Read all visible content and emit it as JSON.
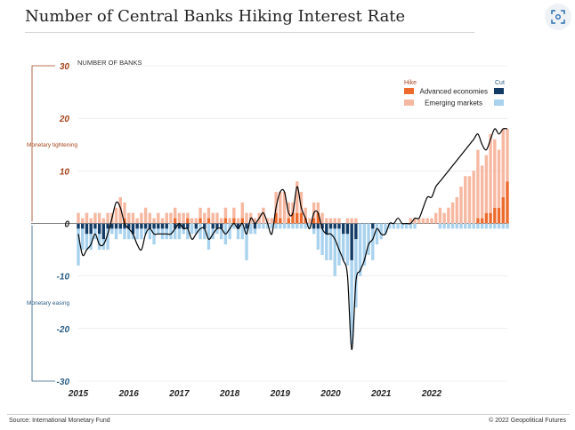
{
  "header": {
    "title": "Number of Central Banks Hiking Interest Rate",
    "lens_icon": "lens-scan-icon"
  },
  "footer": {
    "source": "Source: International Monetary Fund",
    "copyright": "© 2022 Geopolitical Futures"
  },
  "colors": {
    "adv_hike": "#ee6a2c",
    "em_hike": "#f7b8a1",
    "adv_cut": "#123b66",
    "em_cut": "#a9d2ee",
    "tightening_axis": "#a5431c",
    "easing_axis": "#2b5d85",
    "net_line": "#000000"
  },
  "chart_data": {
    "type": "bar",
    "stacked": true,
    "frequency": "monthly",
    "start": "2015-01",
    "ylabel": "NUMBER OF BANKS",
    "ylim": [
      -30,
      30
    ],
    "yticks": [
      30,
      20,
      10,
      0,
      -10,
      -20,
      -30
    ],
    "xticks": [
      "2015",
      "2016",
      "2017",
      "2018",
      "2019",
      "2020",
      "2021",
      "2022"
    ],
    "side_labels": {
      "positive": "Monetary tightening",
      "negative": "Monetary easing"
    },
    "legend": {
      "hike_header": "Hike",
      "cut_header": "Cut",
      "position": "top-right"
    },
    "series": [
      {
        "name": "Advanced economies",
        "kind": "hike",
        "values": [
          0,
          0,
          0,
          0,
          0,
          0,
          0,
          0,
          0,
          0,
          0,
          1,
          0,
          0,
          0,
          0,
          0,
          0,
          0,
          0,
          0,
          0,
          0,
          1,
          0,
          0,
          1,
          0,
          0,
          1,
          0,
          1,
          0,
          0,
          0,
          1,
          0,
          1,
          0,
          1,
          0,
          0,
          0,
          0,
          0,
          0,
          0,
          2,
          1,
          0,
          1,
          2,
          2,
          2,
          1,
          0,
          1,
          2,
          0,
          0,
          0,
          0,
          0,
          0,
          0,
          0,
          0,
          0,
          0,
          0,
          0,
          0,
          0,
          0,
          0,
          0,
          0,
          0,
          0,
          0,
          0,
          0,
          0,
          0,
          0,
          0,
          0,
          0,
          0,
          0,
          0,
          0,
          0,
          0,
          0,
          1,
          1,
          2,
          2,
          3,
          3,
          5,
          8
        ]
      },
      {
        "name": "Emerging markets",
        "kind": "hike",
        "values": [
          2,
          1,
          2,
          1,
          2,
          2,
          1,
          2,
          2,
          3,
          5,
          3,
          2,
          2,
          1,
          2,
          3,
          2,
          1,
          2,
          1,
          2,
          2,
          2,
          2,
          2,
          1,
          1,
          1,
          2,
          2,
          2,
          2,
          2,
          1,
          2,
          1,
          2,
          1,
          3,
          2,
          2,
          1,
          2,
          3,
          1,
          1,
          4,
          5,
          6,
          3,
          2,
          6,
          4,
          2,
          1,
          3,
          2,
          2,
          1,
          1,
          1,
          1,
          0,
          1,
          1,
          1,
          0,
          0,
          0,
          0,
          0,
          0,
          0,
          0,
          0,
          0,
          0,
          0,
          1,
          1,
          1,
          1,
          1,
          1,
          2,
          3,
          2,
          3,
          4,
          5,
          7,
          9,
          9,
          10,
          13,
          10,
          11,
          15,
          13,
          11,
          13,
          10
        ]
      },
      {
        "name": "Advanced economies",
        "kind": "cut",
        "values": [
          -1,
          -1,
          -2,
          -2,
          -1,
          -2,
          -3,
          -1,
          -1,
          -1,
          -1,
          -1,
          -1,
          -2,
          -1,
          -1,
          -1,
          -1,
          -1,
          -1,
          -1,
          -1,
          0,
          -1,
          -1,
          -1,
          -1,
          0,
          -1,
          0,
          -1,
          0,
          -1,
          -1,
          -1,
          0,
          0,
          0,
          -1,
          0,
          -1,
          0,
          -1,
          0,
          0,
          0,
          0,
          0,
          0,
          0,
          0,
          0,
          0,
          0,
          0,
          0,
          -1,
          -1,
          -1,
          -2,
          -1,
          -1,
          -1,
          -2,
          -2,
          -7,
          -3,
          0,
          0,
          0,
          -1,
          0,
          0,
          0,
          0,
          0,
          0,
          0,
          0,
          0,
          0,
          0,
          0,
          0,
          0,
          0,
          0,
          0,
          0,
          0,
          0,
          0,
          0,
          0,
          0,
          0,
          0,
          0,
          0,
          0,
          0,
          0,
          0
        ]
      },
      {
        "name": "Emerging markets",
        "kind": "cut",
        "values": [
          -7,
          -4,
          -3,
          -3,
          -2,
          -3,
          -2,
          -4,
          -1,
          -2,
          -1,
          -2,
          -2,
          -1,
          -2,
          -2,
          -1,
          -2,
          -3,
          -1,
          -2,
          -2,
          -3,
          -2,
          -2,
          -1,
          -2,
          -2,
          -1,
          -3,
          -2,
          -5,
          -2,
          -1,
          -2,
          -4,
          -3,
          -1,
          -2,
          -3,
          -6,
          -2,
          -1,
          -1,
          -1,
          -1,
          -1,
          -1,
          -1,
          -1,
          -1,
          -1,
          -1,
          -1,
          -1,
          -1,
          -1,
          -4,
          -5,
          -5,
          -6,
          -9,
          -7,
          -5,
          -6,
          -16,
          -13,
          -10,
          -8,
          -6,
          -6,
          -4,
          -3,
          -2,
          -1,
          -1,
          -1,
          -1,
          -1,
          -1,
          -1,
          0,
          0,
          0,
          0,
          0,
          -1,
          -1,
          -1,
          -1,
          -1,
          -1,
          -1,
          -1,
          -1,
          -1,
          -1,
          -1,
          -1,
          -1,
          -1,
          -1,
          -1
        ]
      }
    ],
    "net_line": [
      -2,
      -6,
      -5,
      -4,
      -2,
      -4,
      -4,
      -2,
      1,
      4,
      3,
      0,
      -1,
      -2,
      -4,
      -5,
      -2,
      -1,
      -2,
      -2,
      -2,
      -2,
      -2,
      -1,
      0,
      -1,
      -1,
      -3,
      -2,
      -1,
      -1,
      -3,
      -2,
      -1,
      -1,
      -2,
      -1,
      0,
      -1,
      0,
      -2,
      1,
      0,
      1,
      2,
      0,
      -2,
      3,
      6,
      6,
      2,
      2,
      7,
      3,
      1,
      -1,
      2,
      2,
      -1,
      -2,
      -2,
      -3,
      -5,
      -7,
      -10,
      -24,
      -11,
      -9,
      -7,
      -4,
      -3,
      -1,
      -2,
      -2,
      0,
      0,
      1,
      0,
      0,
      0,
      1,
      1,
      3,
      5,
      5,
      7,
      8,
      9,
      10,
      11,
      12,
      13,
      14,
      15,
      16,
      17,
      15,
      14,
      16,
      18,
      17,
      18,
      18
    ],
    "net_line_name": ""
  }
}
